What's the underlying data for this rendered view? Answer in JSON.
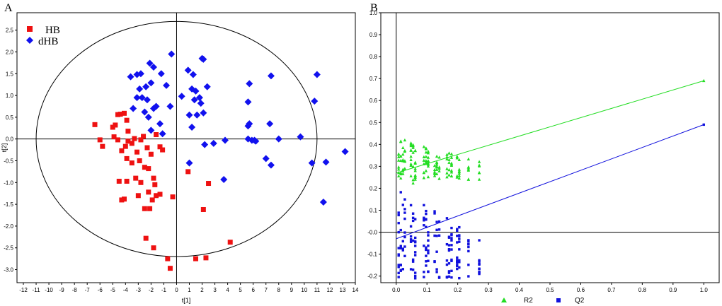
{
  "chart_data": [
    {
      "panel": "A",
      "type": "scatter",
      "title": "",
      "xlabel": "t[1]",
      "ylabel": "t[2]",
      "xlim": [
        -12,
        14
      ],
      "ylim": [
        -3.3,
        2.9
      ],
      "xticks": [
        -12,
        -11,
        -10,
        -9,
        -8,
        -7,
        -6,
        -5,
        -4,
        -3,
        -2,
        -1,
        0,
        1,
        2,
        3,
        4,
        5,
        6,
        7,
        8,
        9,
        10,
        11,
        12,
        13,
        14
      ],
      "yticks": [
        2.5,
        2.0,
        1.5,
        1.0,
        0.5,
        0.0,
        -0.5,
        -1.0,
        -1.5,
        -2.0,
        -2.5,
        -3.0
      ],
      "ellipse": {
        "cx": 0,
        "cy": 0,
        "rx": 11.0,
        "ry": 2.7
      },
      "legend": {
        "position": "top-left",
        "entries": [
          {
            "label": "HB",
            "color": "#ee1111"
          },
          {
            "label": "dHB",
            "color": "#1111ee"
          }
        ]
      },
      "series": [
        {
          "name": "HB",
          "marker": "square",
          "color": "#ee1111",
          "points": [
            [
              -6.4,
              0.33
            ],
            [
              -6.0,
              -0.02
            ],
            [
              -5.8,
              -0.17
            ],
            [
              -5.0,
              0.27
            ],
            [
              -4.8,
              0.32
            ],
            [
              -4.6,
              0.56
            ],
            [
              -4.4,
              0.57
            ],
            [
              -4.1,
              0.59
            ],
            [
              -3.9,
              0.43
            ],
            [
              -3.8,
              0.18
            ],
            [
              -4.9,
              0.05
            ],
            [
              -4.6,
              -0.02
            ],
            [
              -4.3,
              -0.27
            ],
            [
              -4.0,
              -0.17
            ],
            [
              -3.8,
              -0.05
            ],
            [
              -3.5,
              -0.1
            ],
            [
              -3.3,
              0.01
            ],
            [
              -3.9,
              -0.45
            ],
            [
              -3.5,
              -0.55
            ],
            [
              -3.1,
              -0.3
            ],
            [
              -2.8,
              -0.02
            ],
            [
              -2.6,
              0.06
            ],
            [
              -2.3,
              -0.2
            ],
            [
              -2.0,
              -0.35
            ],
            [
              -1.6,
              0.1
            ],
            [
              -1.3,
              -0.18
            ],
            [
              -1.1,
              -0.25
            ],
            [
              -2.9,
              -0.5
            ],
            [
              -2.5,
              -0.65
            ],
            [
              -2.2,
              -0.68
            ],
            [
              -4.5,
              -0.97
            ],
            [
              -3.9,
              -0.97
            ],
            [
              -3.2,
              -0.9
            ],
            [
              -2.8,
              -1.0
            ],
            [
              -4.3,
              -1.4
            ],
            [
              -4.1,
              -1.38
            ],
            [
              -3.0,
              -1.3
            ],
            [
              -2.2,
              -1.22
            ],
            [
              -2.5,
              -1.6
            ],
            [
              -1.8,
              -0.9
            ],
            [
              -1.7,
              -1.05
            ],
            [
              -1.6,
              -1.3
            ],
            [
              -1.3,
              -1.27
            ],
            [
              -1.9,
              -1.4
            ],
            [
              -2.1,
              -1.6
            ],
            [
              -0.3,
              -1.33
            ],
            [
              0.9,
              -0.75
            ],
            [
              2.5,
              -1.02
            ],
            [
              2.1,
              -1.62
            ],
            [
              -2.4,
              -2.28
            ],
            [
              -1.8,
              -2.5
            ],
            [
              -0.7,
              -2.75
            ],
            [
              -0.5,
              -2.97
            ],
            [
              1.5,
              -2.75
            ],
            [
              2.3,
              -2.73
            ],
            [
              4.2,
              -2.37
            ]
          ]
        },
        {
          "name": "dHB",
          "marker": "diamond",
          "color": "#1111ee",
          "points": [
            [
              -3.6,
              1.43
            ],
            [
              -3.1,
              1.48
            ],
            [
              -2.8,
              1.5
            ],
            [
              -2.1,
              1.74
            ],
            [
              -1.8,
              1.65
            ],
            [
              -1.2,
              1.5
            ],
            [
              -0.4,
              1.95
            ],
            [
              -3.4,
              0.7
            ],
            [
              -3.1,
              0.95
            ],
            [
              -2.9,
              1.15
            ],
            [
              -2.7,
              0.95
            ],
            [
              -2.4,
              1.2
            ],
            [
              -2.0,
              1.29
            ],
            [
              -2.3,
              0.9
            ],
            [
              -2.5,
              0.62
            ],
            [
              -1.8,
              0.7
            ],
            [
              -1.6,
              0.75
            ],
            [
              -2.2,
              0.5
            ],
            [
              -1.3,
              0.35
            ],
            [
              -0.5,
              0.75
            ],
            [
              -0.8,
              1.23
            ],
            [
              0.4,
              0.98
            ],
            [
              -2.0,
              0.2
            ],
            [
              -1.1,
              0.12
            ],
            [
              0.9,
              1.58
            ],
            [
              1.3,
              1.48
            ],
            [
              2.0,
              1.85
            ],
            [
              2.1,
              1.83
            ],
            [
              2.4,
              1.2
            ],
            [
              1.2,
              1.15
            ],
            [
              1.5,
              1.1
            ],
            [
              1.8,
              0.95
            ],
            [
              1.9,
              0.82
            ],
            [
              1.4,
              0.9
            ],
            [
              1.0,
              0.55
            ],
            [
              1.6,
              0.55
            ],
            [
              2.1,
              0.6
            ],
            [
              1.2,
              0.27
            ],
            [
              2.2,
              -0.13
            ],
            [
              2.9,
              -0.1
            ],
            [
              3.8,
              -0.03
            ],
            [
              1.0,
              -0.55
            ],
            [
              3.7,
              -0.93
            ],
            [
              5.6,
              0.85
            ],
            [
              5.7,
              1.27
            ],
            [
              5.6,
              0.3
            ],
            [
              5.7,
              0.35
            ],
            [
              5.9,
              -0.03
            ],
            [
              6.1,
              -0.03
            ],
            [
              7.0,
              -0.45
            ],
            [
              7.4,
              -0.6
            ],
            [
              7.3,
              0.35
            ],
            [
              7.4,
              1.45
            ],
            [
              8.0,
              0.0
            ],
            [
              9.7,
              0.05
            ],
            [
              10.8,
              0.87
            ],
            [
              11.0,
              1.48
            ],
            [
              10.6,
              -0.55
            ],
            [
              11.7,
              -0.53
            ],
            [
              11.5,
              -1.45
            ],
            [
              13.2,
              -0.29
            ],
            [
              5.6,
              0.0
            ],
            [
              6.2,
              -0.05
            ]
          ]
        }
      ]
    },
    {
      "panel": "B",
      "type": "scatter",
      "title": "",
      "xlabel": "",
      "ylabel": "",
      "xlim": [
        -0.05,
        1.05
      ],
      "ylim": [
        -0.23,
        1.0
      ],
      "xticks": [
        0.0,
        0.1,
        0.2,
        0.3,
        0.4,
        0.5,
        0.6,
        0.7,
        0.8,
        0.9,
        1.0
      ],
      "xtick_labels": [
        "0.0",
        "0.1",
        "0.2",
        "0.3",
        "0.4",
        "0.5",
        "0.6",
        "0.7",
        "0.8",
        "0.9",
        "1.0"
      ],
      "yticks": [
        1.0,
        0.9,
        0.8,
        0.7,
        0.6,
        0.5,
        0.4,
        0.3,
        0.2,
        0.1,
        0.0,
        -0.1,
        -0.2
      ],
      "ytick_labels": [
        "1.0",
        "0.9",
        "0.8",
        "0.7",
        "0.6",
        "0.5",
        "0.4",
        "0.3",
        "0.2",
        "0.1",
        "-0.0",
        "-0.1",
        "-0.2"
      ],
      "legend": {
        "position": "bottom-center",
        "entries": [
          {
            "label": "R2",
            "color": "#22dd22",
            "marker": "triangle"
          },
          {
            "label": "Q2",
            "color": "#1111dd",
            "marker": "square"
          }
        ]
      },
      "series": [
        {
          "name": "R2",
          "marker": "triangle",
          "color": "#22dd22",
          "points": [
            [
              1.0,
              0.69
            ]
          ],
          "permutation_x": [
            0.008,
            0.015,
            0.022,
            0.028,
            0.048,
            0.055,
            0.062,
            0.09,
            0.097,
            0.104,
            0.125,
            0.132,
            0.14,
            0.165,
            0.172,
            0.18,
            0.198,
            0.205,
            0.235,
            0.27
          ],
          "permutation_y_range": [
            0.21,
            0.44
          ],
          "line": {
            "x": [
              0,
              1.0
            ],
            "y": [
              0.27,
              0.69
            ]
          }
        },
        {
          "name": "Q2",
          "marker": "square",
          "color": "#1111dd",
          "points": [
            [
              1.0,
              0.49
            ]
          ],
          "permutation_x": [
            0.008,
            0.015,
            0.022,
            0.028,
            0.048,
            0.055,
            0.062,
            0.09,
            0.097,
            0.104,
            0.125,
            0.132,
            0.14,
            0.165,
            0.172,
            0.18,
            0.198,
            0.205,
            0.235,
            0.27
          ],
          "permutation_y_range": [
            -0.21,
            0.22
          ],
          "line": {
            "x": [
              0,
              1.0
            ],
            "y": [
              -0.03,
              0.49
            ]
          }
        }
      ]
    }
  ]
}
